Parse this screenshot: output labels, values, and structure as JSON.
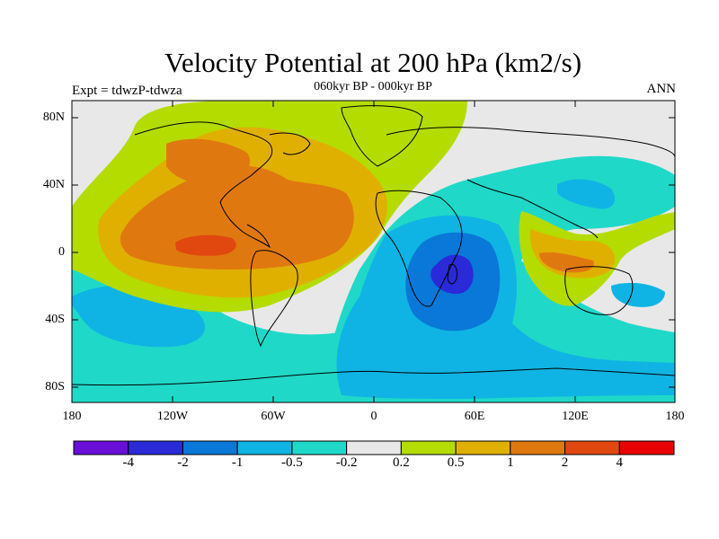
{
  "title": "Velocity Potential at 200 hPa (km2/s)",
  "subtitle": "060kyr BP - 000kyr BP",
  "left_label": "Expt = tdwzP-tdwza",
  "right_label": "ANN",
  "y_ticks": [
    "80N",
    "40N",
    "0",
    "40S",
    "80S"
  ],
  "x_ticks": [
    "180",
    "120W",
    "60W",
    "0",
    "60E",
    "120E",
    "180"
  ],
  "colorbar": {
    "colors": [
      "#6a0fd8",
      "#2a2ad8",
      "#0a78d8",
      "#10b4e4",
      "#20d8c8",
      "#e8e8e8",
      "#b4dc00",
      "#e0b000",
      "#e07810",
      "#e04810",
      "#e80000"
    ],
    "labels": [
      "-4",
      "-2",
      "-1",
      "-0.5",
      "-0.2",
      "0.2",
      "0.5",
      "1",
      "2",
      "4"
    ]
  },
  "map": {
    "projection": "cylindrical equidistant",
    "lon_range": [
      -180,
      180
    ],
    "lat_range": [
      -90,
      90
    ],
    "field": "velocity potential difference at 200 hPa",
    "units": "km2/s"
  }
}
